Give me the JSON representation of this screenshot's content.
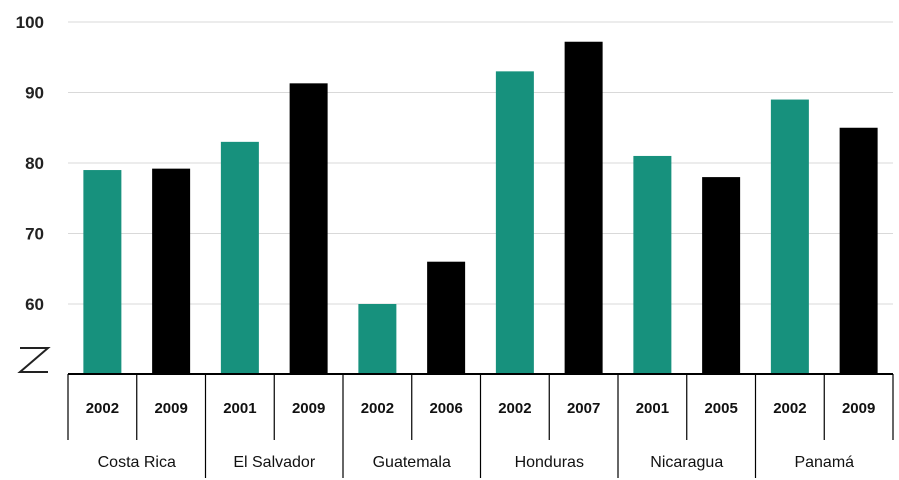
{
  "chart_data": {
    "type": "bar",
    "ylim": [
      53,
      100
    ],
    "y_ticks": [
      "60",
      "70",
      "80",
      "90",
      "100"
    ],
    "grid": true,
    "axis_break": true,
    "colors": {
      "first": "#17917d",
      "second": "#000000"
    },
    "groups": [
      {
        "country": "Costa Rica",
        "bars": [
          {
            "year": "2002",
            "value": 79
          },
          {
            "year": "2009",
            "value": 79.2
          }
        ]
      },
      {
        "country": "El Salvador",
        "bars": [
          {
            "year": "2001",
            "value": 83
          },
          {
            "year": "2009",
            "value": 91.3
          }
        ]
      },
      {
        "country": "Guatemala",
        "bars": [
          {
            "year": "2002",
            "value": 60
          },
          {
            "year": "2006",
            "value": 66
          }
        ]
      },
      {
        "country": "Honduras",
        "bars": [
          {
            "year": "2002",
            "value": 93
          },
          {
            "year": "2007",
            "value": 97.2
          }
        ]
      },
      {
        "country": "Nicaragua",
        "bars": [
          {
            "year": "2001",
            "value": 81
          },
          {
            "year": "2005",
            "value": 78
          }
        ]
      },
      {
        "country": "Panamá",
        "bars": [
          {
            "year": "2002",
            "value": 89
          },
          {
            "year": "2009",
            "value": 85
          }
        ]
      }
    ]
  }
}
